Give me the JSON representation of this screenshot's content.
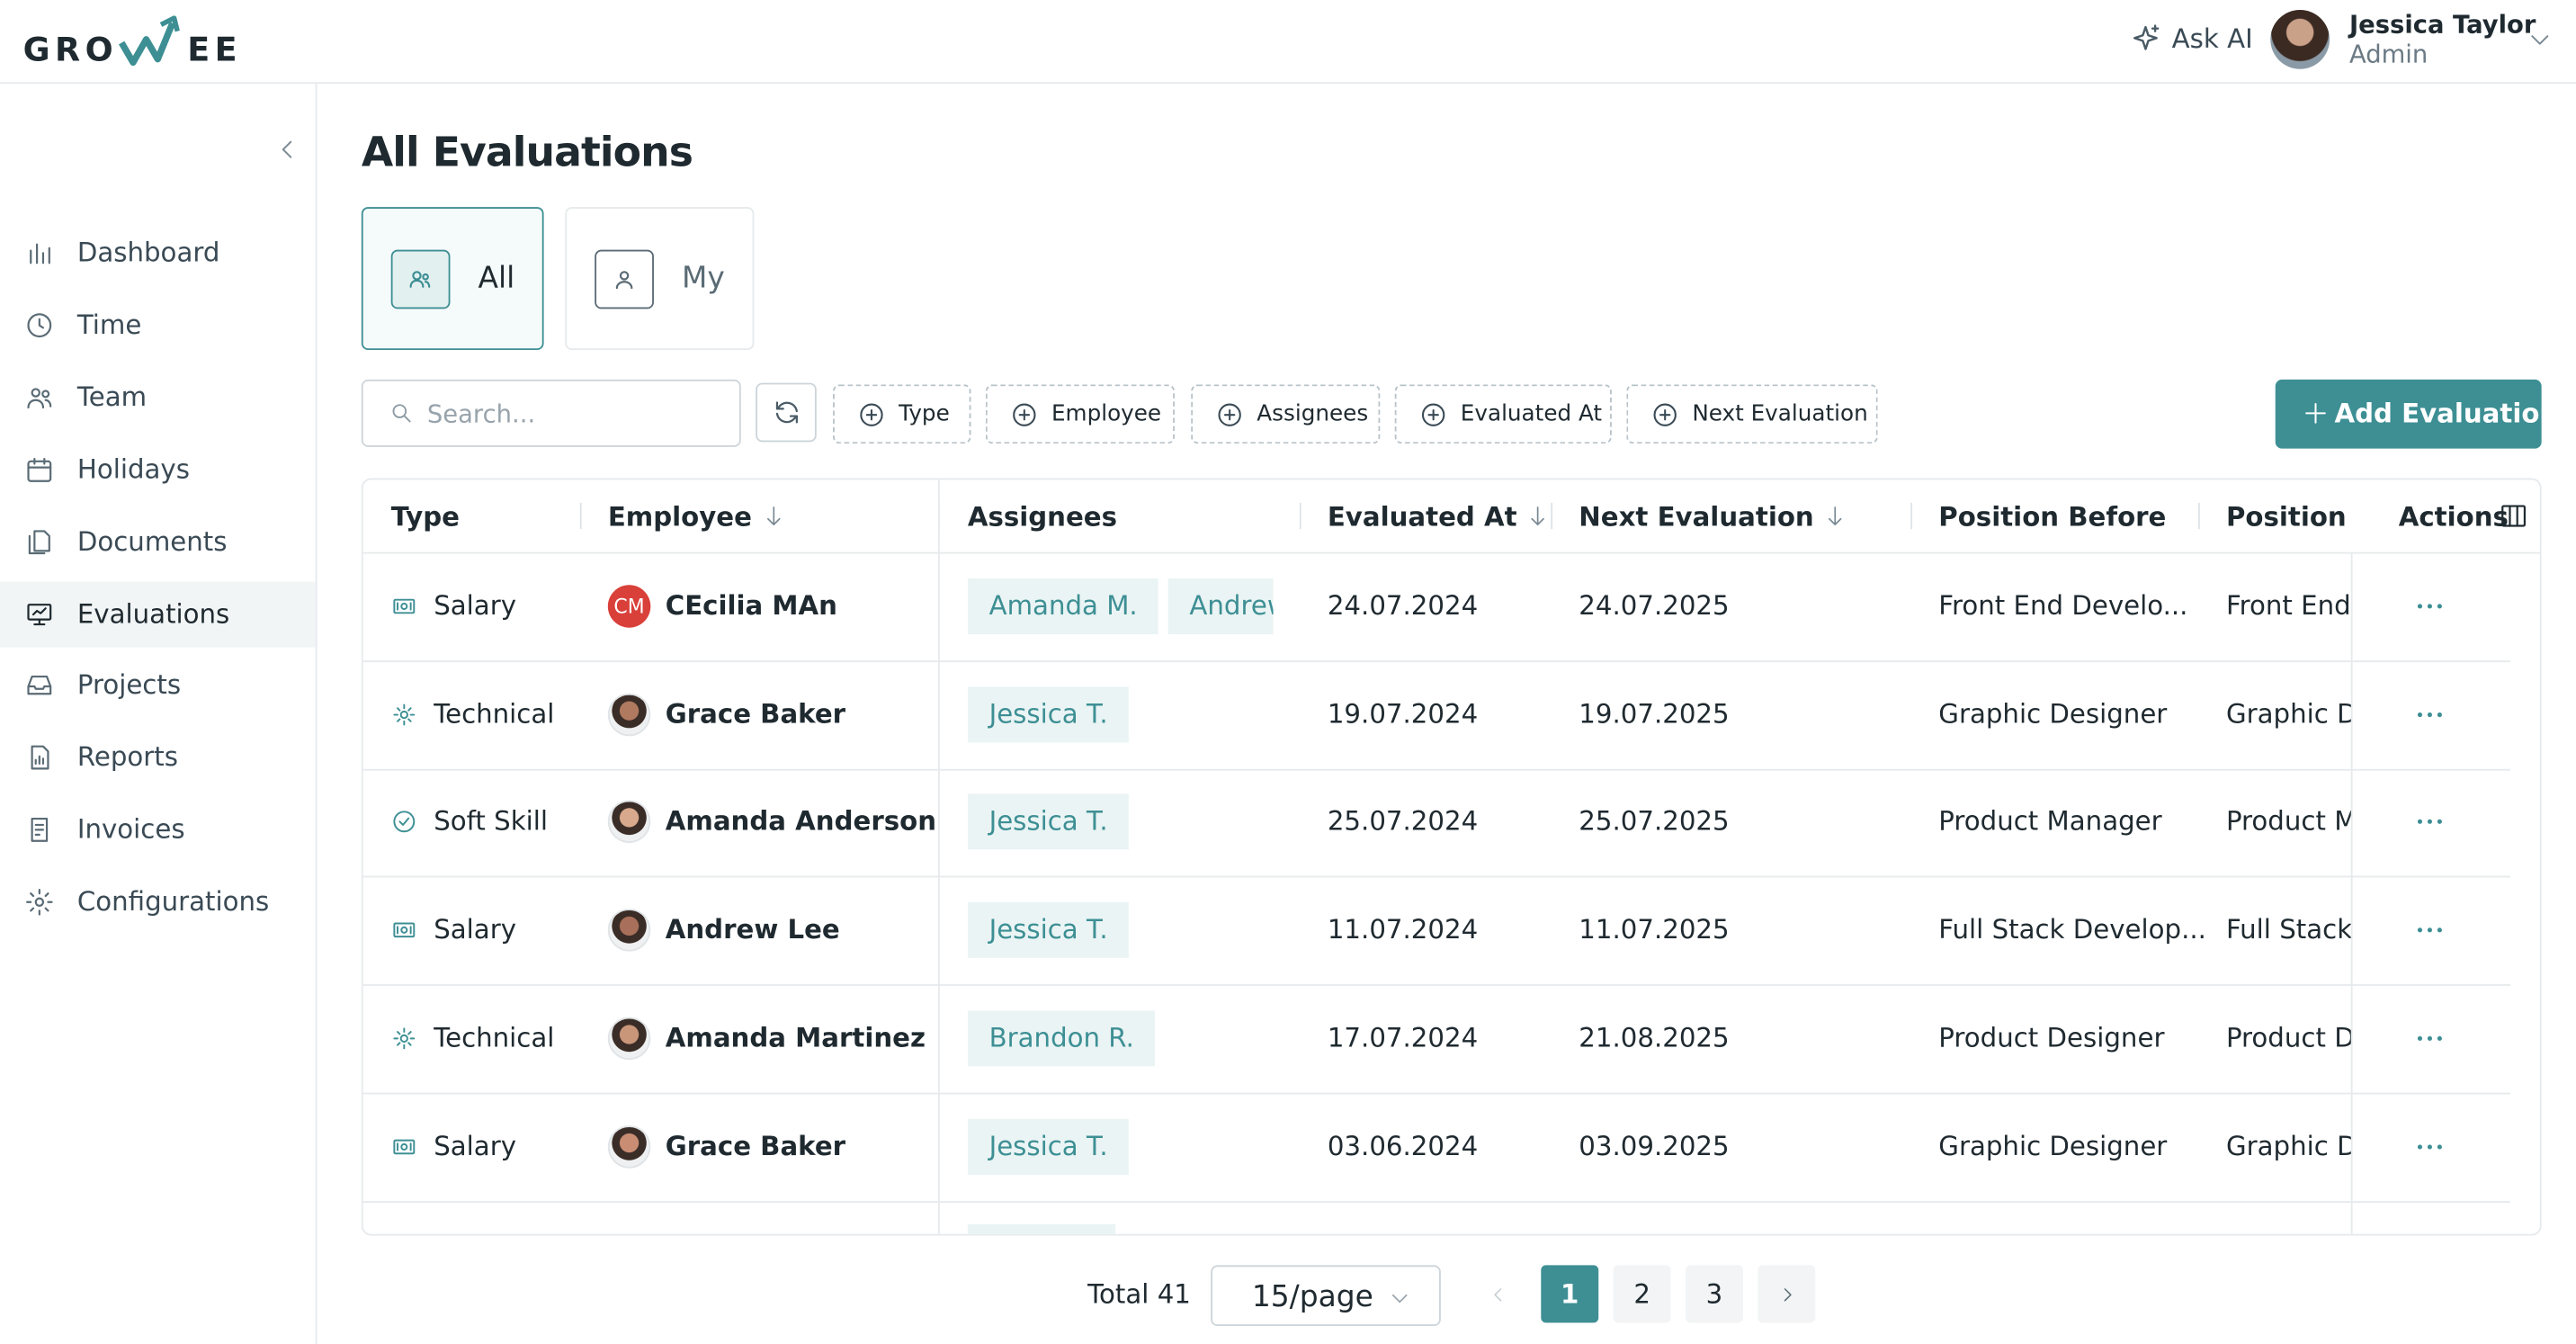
{
  "header": {
    "logo_left": "GRO",
    "logo_right": "EE",
    "ask_ai": "Ask AI",
    "user_name": "Jessica Taylor",
    "user_role": "Admin"
  },
  "sidebar": {
    "items": [
      "Dashboard",
      "Time",
      "Team",
      "Holidays",
      "Documents",
      "Evaluations",
      "Projects",
      "Reports",
      "Invoices",
      "Configurations"
    ],
    "active": 5
  },
  "page": {
    "title": "All Evaluations",
    "tabs": [
      "All",
      "My"
    ],
    "search_placeholder": "Search...",
    "filters": [
      "Type",
      "Employee",
      "Assignees",
      "Evaluated At",
      "Next Evaluation"
    ],
    "add_button": "Add Evaluation"
  },
  "table": {
    "columns": [
      {
        "label": "Type",
        "sort": false
      },
      {
        "label": "Employee",
        "sort": true
      },
      {
        "label": "Assignees",
        "sort": false
      },
      {
        "label": "Evaluated At",
        "sort": true
      },
      {
        "label": "Next Evaluation",
        "sort": true
      },
      {
        "label": "Position Before",
        "sort": false
      },
      {
        "label": "Position Afte",
        "sort": false
      },
      {
        "label": "Actions",
        "sort": false
      }
    ],
    "rows": [
      {
        "type": "Salary",
        "employee": "CEcilia MAn",
        "initials": "CM",
        "assignees": [
          "Amanda M.",
          "Andrew"
        ],
        "evaluated_at": "24.07.2024",
        "next_evaluation": "24.07.2025",
        "position_before": "Front End Develo...",
        "position_after": "Front End I"
      },
      {
        "type": "Technical",
        "employee": "Grace Baker",
        "assignees": [
          "Jessica T."
        ],
        "evaluated_at": "19.07.2024",
        "next_evaluation": "19.07.2025",
        "position_before": "Graphic Designer",
        "position_after": "Graphic De"
      },
      {
        "type": "Soft Skill",
        "employee": "Amanda Anderson",
        "assignees": [
          "Jessica T."
        ],
        "evaluated_at": "25.07.2024",
        "next_evaluation": "25.07.2025",
        "position_before": "Product Manager",
        "position_after": "Product M"
      },
      {
        "type": "Salary",
        "employee": "Andrew Lee",
        "assignees": [
          "Jessica T."
        ],
        "evaluated_at": "11.07.2024",
        "next_evaluation": "11.07.2025",
        "position_before": "Full Stack Develop...",
        "position_after": "Full Stack D"
      },
      {
        "type": "Technical",
        "employee": "Amanda Martinez",
        "assignees": [
          "Brandon R."
        ],
        "evaluated_at": "17.07.2024",
        "next_evaluation": "21.08.2025",
        "position_before": "Product Designer",
        "position_after": "Product De"
      },
      {
        "type": "Salary",
        "employee": "Grace Baker",
        "assignees": [
          "Jessica T."
        ],
        "evaluated_at": "03.06.2024",
        "next_evaluation": "03.09.2025",
        "position_before": "Graphic Designer",
        "position_after": "Graphic De"
      }
    ]
  },
  "pagination": {
    "total": "Total 41",
    "page_size": "15/page",
    "pages": [
      "1",
      "2",
      "3"
    ],
    "current": 0
  }
}
